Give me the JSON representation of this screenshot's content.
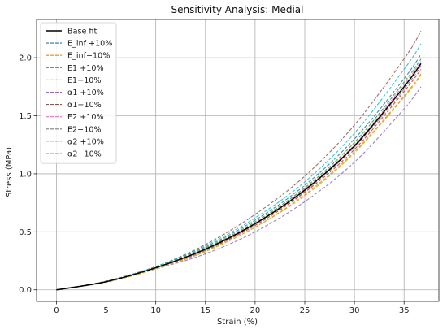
{
  "chart_data": {
    "type": "line",
    "title": "Sensitivity Analysis: Medial",
    "xlabel": "Strain (%)",
    "ylabel": "Stress (MPa)",
    "xlim": [
      -2,
      38.5
    ],
    "ylim": [
      -0.1,
      2.33
    ],
    "xticks": [
      0,
      5,
      10,
      15,
      20,
      25,
      30,
      35
    ],
    "yticks": [
      0.0,
      0.5,
      1.0,
      1.5,
      2.0
    ],
    "ytick_labels": [
      "0.0",
      "0.5",
      "1.0",
      "1.5",
      "2.0"
    ],
    "grid": true,
    "legend_position": "top-left",
    "x": [
      0,
      5,
      10,
      15,
      20,
      25,
      30,
      35,
      36.7
    ],
    "series": [
      {
        "name": "Base fit",
        "color": "#000000",
        "dashed": false,
        "values": [
          0.0,
          0.07,
          0.19,
          0.35,
          0.57,
          0.86,
          1.24,
          1.75,
          1.95
        ]
      },
      {
        "name": "E_inf +10%",
        "color": "#1f77b4",
        "dashed": true,
        "values": [
          0.0,
          0.075,
          0.2,
          0.37,
          0.6,
          0.9,
          1.3,
          1.82,
          2.03
        ]
      },
      {
        "name": "E_inf−10%",
        "color": "#ff7f0e",
        "dashed": true,
        "values": [
          0.0,
          0.065,
          0.18,
          0.33,
          0.54,
          0.82,
          1.19,
          1.67,
          1.86
        ]
      },
      {
        "name": "E1 +10%",
        "color": "#2ca02c",
        "dashed": true,
        "values": [
          0.0,
          0.072,
          0.195,
          0.36,
          0.585,
          0.88,
          1.27,
          1.79,
          1.99
        ]
      },
      {
        "name": "E1−10%",
        "color": "#d62728",
        "dashed": true,
        "values": [
          0.0,
          0.068,
          0.185,
          0.34,
          0.555,
          0.84,
          1.21,
          1.71,
          1.9
        ]
      },
      {
        "name": "α1 +10%",
        "color": "#9467bd",
        "dashed": true,
        "values": [
          0.0,
          0.07,
          0.18,
          0.31,
          0.5,
          0.76,
          1.1,
          1.56,
          1.75
        ]
      },
      {
        "name": "α1−10%",
        "color": "#8c564b",
        "dashed": true,
        "values": [
          0.0,
          0.073,
          0.2,
          0.39,
          0.65,
          0.98,
          1.42,
          1.99,
          2.23
        ]
      },
      {
        "name": "E2 +10%",
        "color": "#e377c2",
        "dashed": true,
        "values": [
          0.0,
          0.071,
          0.19,
          0.355,
          0.575,
          0.87,
          1.25,
          1.77,
          1.97
        ]
      },
      {
        "name": "E2−10%",
        "color": "#7f7f7f",
        "dashed": true,
        "values": [
          0.0,
          0.069,
          0.188,
          0.345,
          0.565,
          0.85,
          1.23,
          1.73,
          1.93
        ]
      },
      {
        "name": "α2 +10%",
        "color": "#bcbd22",
        "dashed": true,
        "values": [
          0.0,
          0.068,
          0.18,
          0.33,
          0.54,
          0.81,
          1.18,
          1.66,
          1.85
        ]
      },
      {
        "name": "α2−10%",
        "color": "#17becf",
        "dashed": true,
        "values": [
          0.0,
          0.072,
          0.2,
          0.38,
          0.62,
          0.93,
          1.35,
          1.9,
          2.12
        ]
      }
    ]
  }
}
